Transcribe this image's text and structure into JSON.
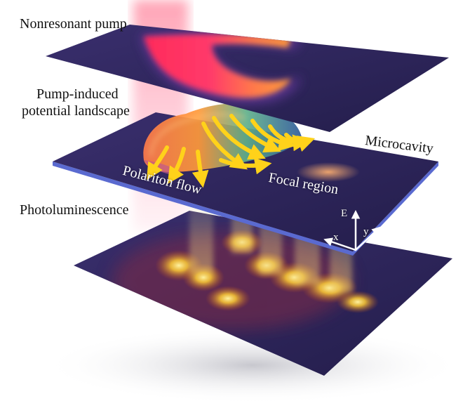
{
  "labels": {
    "nonresonant_pump": "Nonresonant pump",
    "potential_line1": "Pump-induced",
    "potential_line2": "potential landscape",
    "microcavity": "Microcavity",
    "polariton_flow": "Polariton flow",
    "focal_region": "Focal region",
    "photoluminescence": "Photoluminescence"
  },
  "axes": {
    "e": "E",
    "x": "x",
    "y": "y"
  },
  "colors": {
    "background": "#ffffff",
    "plane_dark": "#2a2458",
    "pump_hot": "#ff3a6a",
    "flow_arrow": "#ffd21a",
    "glow": "#ffcc33",
    "cavity_edge": "#5a6ad0"
  }
}
